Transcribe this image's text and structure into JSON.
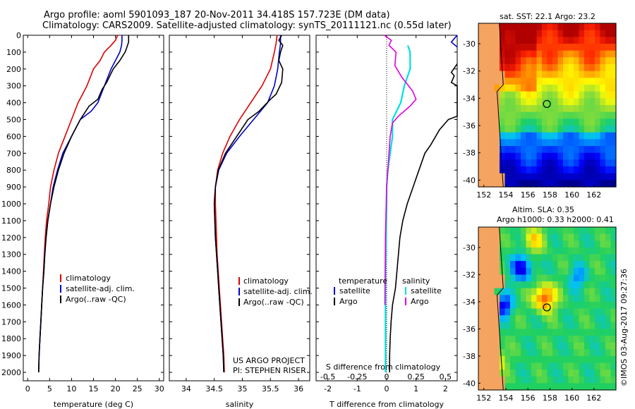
{
  "title_line1": "Argo profile: aoml 5901093_187 20-Nov-2011 34.418S 157.723E (DM data)",
  "title_line2": "Climatology: CARS2009. Satellite-adjusted climatology: synTS_20111121.nc (0.55d later)",
  "project_line1": "US ARGO PROJECT",
  "project_line2": "PI: STEPHEN RISER",
  "vertical_credit": "©IMOS 03-Aug-2017 09:27:36",
  "chart_data": [
    {
      "type": "line",
      "xlabel": "temperature (deg C)",
      "xlim": [
        -1,
        31
      ],
      "xticks": [
        0,
        5,
        10,
        15,
        20,
        25,
        30
      ],
      "ylim": [
        2050,
        0
      ],
      "yticks": [
        0,
        100,
        200,
        300,
        400,
        500,
        600,
        700,
        800,
        900,
        1000,
        1100,
        1200,
        1300,
        1400,
        1500,
        1600,
        1700,
        1800,
        1900,
        2000
      ],
      "legend": [
        "climatology",
        "satellite-adj. clim.",
        "Argo(..raw -QC)"
      ],
      "legend_position": "lower-center",
      "colors": {
        "climatology": "#dd0000",
        "satellite": "#0000cc",
        "argo": "#000000"
      },
      "series": [
        {
          "name": "climatology",
          "points": [
            [
              20.5,
              0
            ],
            [
              20,
              30
            ],
            [
              19,
              60
            ],
            [
              17.5,
              100
            ],
            [
              16.5,
              150
            ],
            [
              15,
              200
            ],
            [
              13.5,
              300
            ],
            [
              12.5,
              350
            ],
            [
              11.5,
              400
            ],
            [
              10,
              500
            ],
            [
              8.5,
              600
            ],
            [
              7,
              700
            ],
            [
              6,
              800
            ],
            [
              5.2,
              900
            ],
            [
              4.8,
              1000
            ],
            [
              4.3,
              1100
            ],
            [
              4,
              1200
            ],
            [
              3.8,
              1300
            ],
            [
              3.6,
              1400
            ],
            [
              3.4,
              1500
            ],
            [
              3.2,
              1600
            ],
            [
              3,
              1700
            ],
            [
              2.8,
              1800
            ],
            [
              2.6,
              1900
            ],
            [
              2.5,
              2000
            ]
          ]
        },
        {
          "name": "satellite-adj. clim.",
          "points": [
            [
              21.5,
              0
            ],
            [
              21.5,
              30
            ],
            [
              21.4,
              60
            ],
            [
              21,
              100
            ],
            [
              20,
              150
            ],
            [
              19,
              200
            ],
            [
              17.5,
              300
            ],
            [
              16,
              400
            ],
            [
              14.5,
              450
            ],
            [
              12,
              500
            ],
            [
              10,
              600
            ],
            [
              8,
              700
            ],
            [
              6.8,
              800
            ],
            [
              5.8,
              900
            ],
            [
              5.2,
              1000
            ],
            [
              4.6,
              1100
            ],
            [
              4.2,
              1200
            ],
            [
              3.9,
              1300
            ],
            [
              3.7,
              1400
            ],
            [
              3.4,
              1500
            ],
            [
              3.2,
              1600
            ],
            [
              3,
              1700
            ],
            [
              2.8,
              1800
            ],
            [
              2.6,
              1900
            ],
            [
              2.5,
              2000
            ]
          ]
        },
        {
          "name": "Argo(..raw -QC)",
          "points": [
            [
              23,
              0
            ],
            [
              23,
              40
            ],
            [
              22.5,
              80
            ],
            [
              22.2,
              100
            ],
            [
              21,
              150
            ],
            [
              19.5,
              200
            ],
            [
              18,
              280
            ],
            [
              17,
              320
            ],
            [
              16,
              380
            ],
            [
              14,
              420
            ],
            [
              12,
              500
            ],
            [
              10,
              600
            ],
            [
              8.3,
              700
            ],
            [
              7,
              800
            ],
            [
              6,
              900
            ],
            [
              5.2,
              1000
            ],
            [
              4.6,
              1100
            ],
            [
              4.2,
              1200
            ],
            [
              3.9,
              1300
            ],
            [
              3.7,
              1400
            ],
            [
              3.4,
              1500
            ],
            [
              3.2,
              1600
            ],
            [
              3,
              1700
            ],
            [
              2.8,
              1800
            ],
            [
              2.6,
              1900
            ],
            [
              2.5,
              2000
            ]
          ]
        }
      ]
    },
    {
      "type": "line",
      "xlabel": "salinity",
      "xlim": [
        33.7,
        36.2
      ],
      "xticks": [
        34,
        34.5,
        35,
        35.5,
        36
      ],
      "ylim": [
        2050,
        0
      ],
      "legend": [
        "climatology",
        "satellite-adj. clim.",
        "Argo(..raw -QC)"
      ],
      "legend_position": "lower-center",
      "series": [
        {
          "name": "climatology",
          "points": [
            [
              35.62,
              0
            ],
            [
              35.6,
              50
            ],
            [
              35.57,
              100
            ],
            [
              35.5,
              200
            ],
            [
              35.35,
              300
            ],
            [
              35.15,
              400
            ],
            [
              34.95,
              500
            ],
            [
              34.78,
              600
            ],
            [
              34.65,
              700
            ],
            [
              34.56,
              800
            ],
            [
              34.52,
              900
            ],
            [
              34.52,
              1000
            ],
            [
              34.53,
              1100
            ],
            [
              34.54,
              1200
            ],
            [
              34.55,
              1300
            ],
            [
              34.57,
              1400
            ],
            [
              34.59,
              1500
            ],
            [
              34.61,
              1600
            ],
            [
              34.63,
              1700
            ],
            [
              34.65,
              1800
            ],
            [
              34.67,
              1900
            ],
            [
              34.68,
              2000
            ]
          ]
        },
        {
          "name": "satellite-adj. clim.",
          "points": [
            [
              35.68,
              0
            ],
            [
              35.68,
              50
            ],
            [
              35.66,
              100
            ],
            [
              35.63,
              200
            ],
            [
              35.57,
              300
            ],
            [
              35.45,
              400
            ],
            [
              35.2,
              500
            ],
            [
              34.95,
              600
            ],
            [
              34.72,
              700
            ],
            [
              34.58,
              800
            ],
            [
              34.52,
              900
            ],
            [
              34.5,
              1000
            ],
            [
              34.51,
              1100
            ],
            [
              34.52,
              1200
            ],
            [
              34.54,
              1300
            ],
            [
              34.56,
              1400
            ],
            [
              34.58,
              1500
            ],
            [
              34.6,
              1600
            ],
            [
              34.62,
              1700
            ],
            [
              34.64,
              1800
            ],
            [
              34.66,
              1900
            ],
            [
              34.67,
              2000
            ]
          ]
        },
        {
          "name": "Argo(..raw -QC)",
          "points": [
            [
              35.7,
              0
            ],
            [
              35.65,
              30
            ],
            [
              35.72,
              60
            ],
            [
              35.68,
              100
            ],
            [
              35.65,
              150
            ],
            [
              35.72,
              200
            ],
            [
              35.7,
              280
            ],
            [
              35.6,
              350
            ],
            [
              35.5,
              380
            ],
            [
              35.3,
              450
            ],
            [
              35.1,
              500
            ],
            [
              34.9,
              600
            ],
            [
              34.7,
              700
            ],
            [
              34.57,
              800
            ],
            [
              34.52,
              900
            ],
            [
              34.5,
              1000
            ],
            [
              34.51,
              1100
            ],
            [
              34.52,
              1200
            ],
            [
              34.54,
              1300
            ],
            [
              34.56,
              1400
            ],
            [
              34.58,
              1500
            ],
            [
              34.6,
              1600
            ],
            [
              34.62,
              1700
            ],
            [
              34.64,
              1800
            ],
            [
              34.66,
              1900
            ],
            [
              34.67,
              2000
            ]
          ]
        }
      ]
    },
    {
      "type": "line",
      "xlabel_bottom": "T difference from climatology",
      "xlabel_top": "S difference from climatology",
      "xlim": [
        -2.4,
        2.4
      ],
      "xticks": [
        -2,
        -1,
        0,
        1,
        2
      ],
      "xticks_top_labels": [
        "-0.5",
        "-0.25",
        "0",
        "0.25",
        "0.5"
      ],
      "xticks_top_values": [
        -0.5,
        -0.25,
        0,
        0.25,
        0.5
      ],
      "ylim": [
        2050,
        0
      ],
      "legend_groups": [
        {
          "title": "temperature",
          "items": [
            "satellite",
            "Argo"
          ]
        },
        {
          "title": "salinity",
          "items": [
            "satellite",
            "Argo"
          ]
        }
      ],
      "colors": {
        "t_sat": "#0000cc",
        "t_argo": "#000000",
        "s_sat": "#00e0e0",
        "s_argo": "#e000e0"
      },
      "series": [
        {
          "name": "temperature satellite",
          "points": [
            [
              2.4,
              0
            ],
            [
              2.3,
              20
            ],
            [
              2.2,
              40
            ],
            [
              2.4,
              70
            ]
          ]
        },
        {
          "name": "temperature Argo",
          "points": [
            [
              2.4,
              170
            ],
            [
              2.2,
              220
            ],
            [
              2.3,
              240
            ],
            [
              2.2,
              280
            ],
            [
              2.4,
              300
            ],
            [
              2.4,
              480
            ],
            [
              2.1,
              500
            ],
            [
              1.8,
              560
            ],
            [
              1.5,
              650
            ],
            [
              1.3,
              700
            ],
            [
              1.1,
              800
            ],
            [
              0.9,
              900
            ],
            [
              0.7,
              1000
            ],
            [
              0.55,
              1100
            ],
            [
              0.45,
              1200
            ],
            [
              0.4,
              1300
            ],
            [
              0.35,
              1400
            ],
            [
              0.3,
              1500
            ],
            [
              0.2,
              1600
            ],
            [
              0.15,
              1700
            ],
            [
              0.12,
              1800
            ],
            [
              0.1,
              1900
            ],
            [
              0.1,
              2000
            ]
          ]
        },
        {
          "name": "salinity satellite",
          "points": [
            [
              0.18,
              60
            ],
            [
              0.2,
              100
            ],
            [
              0.2,
              200
            ],
            [
              0.15,
              300
            ],
            [
              0.12,
              400
            ],
            [
              0.05,
              500
            ],
            [
              0.05,
              600
            ],
            [
              0.03,
              700
            ],
            [
              0.01,
              800
            ],
            [
              0,
              900
            ],
            [
              0,
              1000
            ],
            [
              -0.005,
              1200
            ],
            [
              -0.01,
              1400
            ],
            [
              -0.01,
              1600
            ],
            [
              -0.01,
              1800
            ],
            [
              -0.01,
              2000
            ]
          ]
        },
        {
          "name": "salinity Argo",
          "points": [
            [
              -0.02,
              0
            ],
            [
              0.04,
              30
            ],
            [
              0.02,
              60
            ],
            [
              0.08,
              100
            ],
            [
              0.07,
              180
            ],
            [
              0.13,
              250
            ],
            [
              0.22,
              330
            ],
            [
              0.25,
              380
            ],
            [
              0.2,
              420
            ],
            [
              0.1,
              480
            ],
            [
              0.05,
              520
            ],
            [
              0.03,
              600
            ],
            [
              0.02,
              700
            ],
            [
              0.01,
              800
            ],
            [
              0,
              900
            ],
            [
              -0.01,
              1200
            ],
            [
              -0.015,
              1600
            ]
          ]
        }
      ]
    },
    {
      "type": "heatmap",
      "title": "sat. SST: 22.1  Argo: 23.2",
      "xlim": [
        151.5,
        164
      ],
      "ylim": [
        -40.5,
        -28.5
      ],
      "xticks": [
        152,
        154,
        156,
        158,
        160,
        162
      ],
      "yticks": [
        -30,
        -32,
        -34,
        -36,
        -38,
        -40
      ],
      "marker": {
        "lon": 157.723,
        "lat": -34.418
      }
    },
    {
      "type": "heatmap",
      "title_line1": "Altim. SLA: 0.35",
      "title_line2": "Argo h1000: 0.33  h2000: 0.41",
      "xlim": [
        151.5,
        164
      ],
      "ylim": [
        -40.5,
        -28.5
      ],
      "xticks": [
        152,
        154,
        156,
        158,
        160,
        162
      ],
      "yticks": [
        -30,
        -32,
        -34,
        -36,
        -38,
        -40
      ],
      "marker": {
        "lon": 157.723,
        "lat": -34.418
      }
    }
  ]
}
